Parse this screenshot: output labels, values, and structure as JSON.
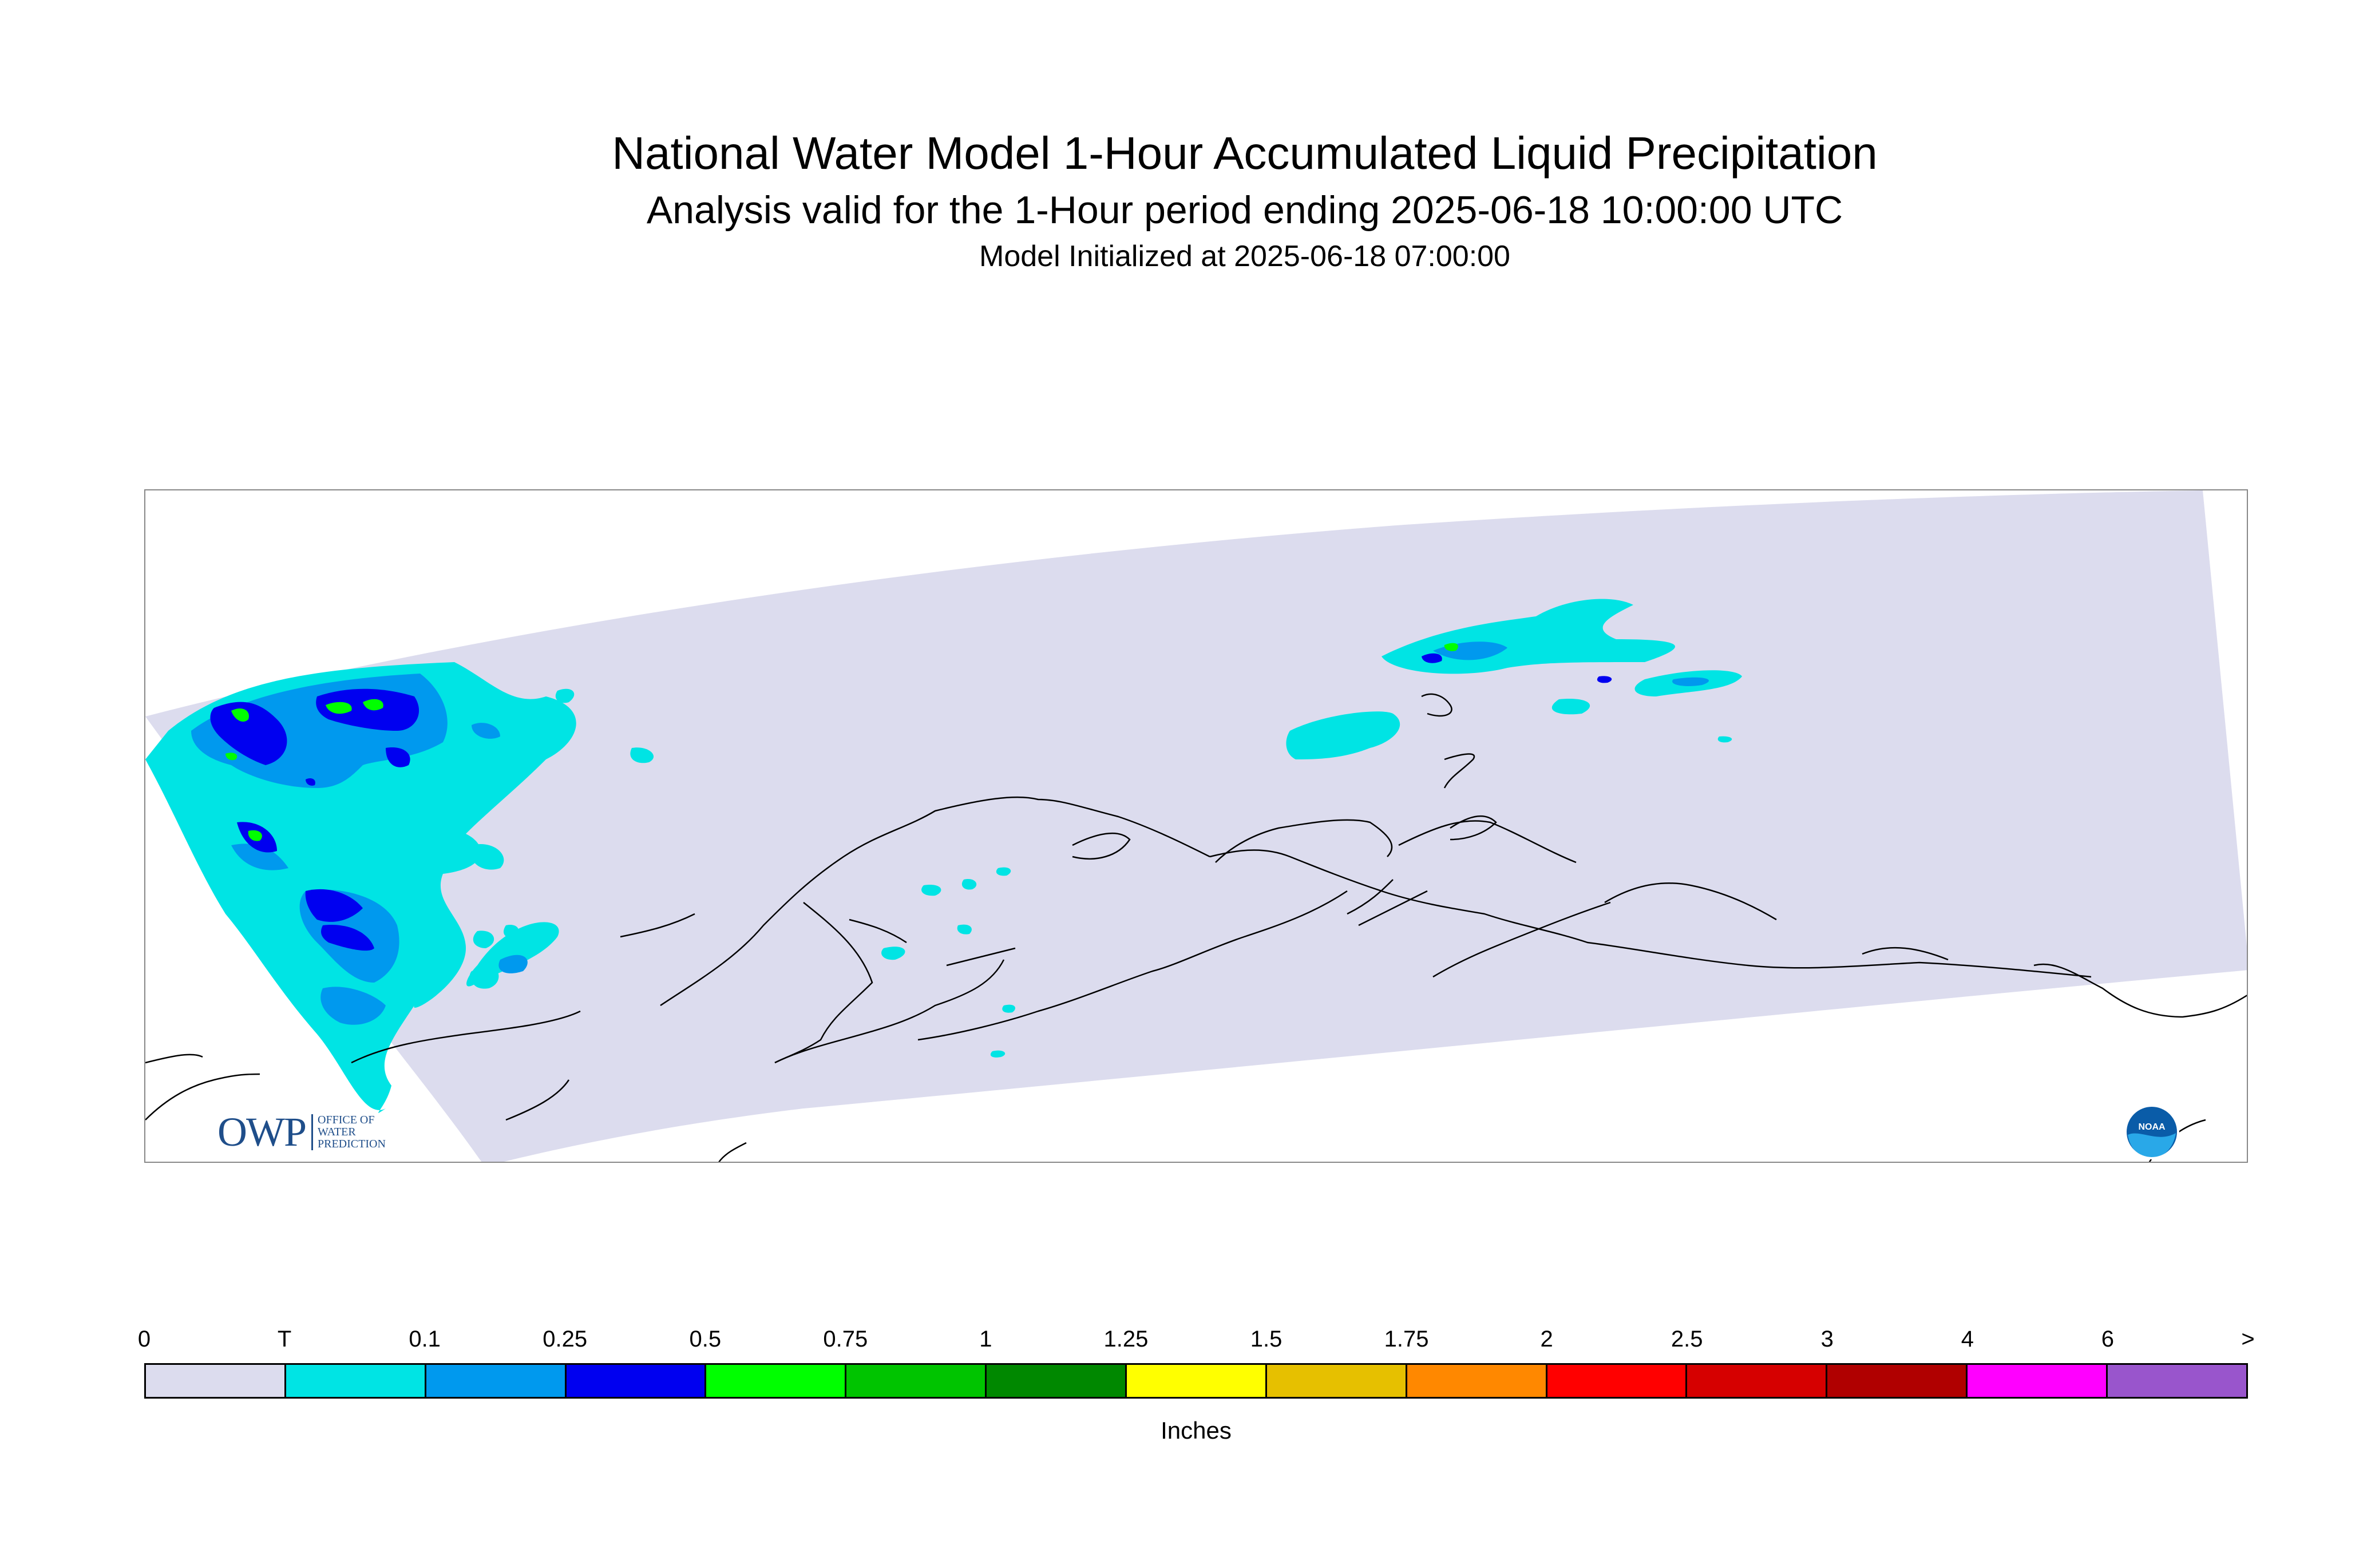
{
  "header": {
    "title": "National Water Model 1-Hour Accumulated Liquid Precipitation",
    "subtitle": "Analysis valid for the 1-Hour period ending 2025-06-18 10:00:00 UTC",
    "initialized": "Model Initialized at 2025-06-18 07:00:00"
  },
  "map": {
    "domain_fill_color": "#dcdcee",
    "coastline_color": "#000000"
  },
  "legend": {
    "ticks": [
      "0",
      "T",
      "0.1",
      "0.25",
      "0.5",
      "0.75",
      "1",
      "1.25",
      "1.5",
      "1.75",
      "2",
      "2.5",
      "3",
      "4",
      "6",
      ">"
    ],
    "colors": [
      "#dcdcee",
      "#00e4e4",
      "#0099ee",
      "#0000f0",
      "#00ff00",
      "#00c400",
      "#008800",
      "#ffff00",
      "#e6c000",
      "#ff8800",
      "#ff0000",
      "#d60000",
      "#b00000",
      "#ff00ff",
      "#9955cc"
    ],
    "units": "Inches"
  },
  "logos": {
    "owp_mark": "OWP",
    "owp_line1": "OFFICE OF",
    "owp_line2": "WATER",
    "owp_line3": "PREDICTION",
    "noaa_text": "NOAA"
  }
}
